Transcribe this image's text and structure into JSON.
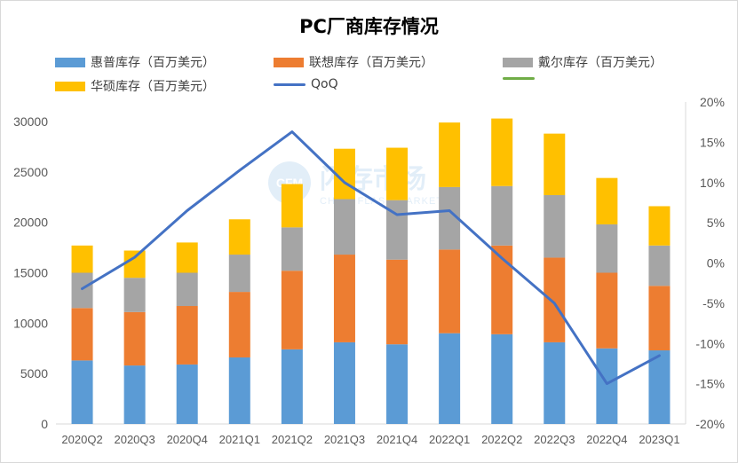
{
  "chart_data": {
    "type": "bar",
    "stacked": true,
    "title": "PC厂商库存情况",
    "categories": [
      "2020Q2",
      "2020Q3",
      "2020Q4",
      "2021Q1",
      "2021Q2",
      "2021Q3",
      "2021Q4",
      "2022Q1",
      "2022Q2",
      "2022Q3",
      "2022Q4",
      "2023Q1"
    ],
    "series": [
      {
        "name": "惠普库存（百万美元）",
        "type": "bar",
        "axis": "left",
        "color": "#5b9bd5",
        "values": [
          6300,
          5800,
          5900,
          6600,
          7400,
          8100,
          7900,
          9000,
          8900,
          8100,
          7500,
          7300
        ]
      },
      {
        "name": "联想库存（百万美元）",
        "type": "bar",
        "axis": "left",
        "color": "#ed7d31",
        "values": [
          5200,
          5300,
          5800,
          6500,
          7800,
          8700,
          8400,
          8300,
          8800,
          8400,
          7500,
          6400
        ]
      },
      {
        "name": "戴尔库存（百万美元）",
        "type": "bar",
        "axis": "left",
        "color": "#a5a5a5",
        "values": [
          3500,
          3400,
          3300,
          3700,
          4300,
          5500,
          5900,
          6200,
          5900,
          6200,
          4800,
          4000
        ]
      },
      {
        "name": "华硕库存（百万美元）",
        "type": "bar",
        "axis": "left",
        "color": "#ffc000",
        "values": [
          2700,
          2700,
          3000,
          3500,
          4300,
          5000,
          5200,
          6400,
          6700,
          6100,
          4600,
          3900
        ]
      },
      {
        "name": "QoQ",
        "type": "line",
        "axis": "right",
        "color": "#4472c4",
        "values": [
          -3.2,
          0.7,
          6.5,
          11.5,
          16.3,
          10.0,
          6.0,
          6.5,
          0.6,
          -5.0,
          -15.0,
          -11.5
        ]
      }
    ],
    "extra_legend": {
      "name": "",
      "color": "#70ad47"
    },
    "y_left": {
      "min": 0,
      "max": 30000,
      "ticks": [
        0,
        5000,
        10000,
        15000,
        20000,
        25000,
        30000
      ]
    },
    "y_right": {
      "min": -20,
      "max": 20,
      "ticks": [
        "-20%",
        "-15%",
        "-10%",
        "-5%",
        "0%",
        "5%",
        "10%",
        "15%",
        "20%"
      ]
    },
    "grid": false,
    "legend_position": "top"
  },
  "watermark": {
    "main": "闪存市场",
    "sub": "CHINA FLASH MARKET"
  }
}
